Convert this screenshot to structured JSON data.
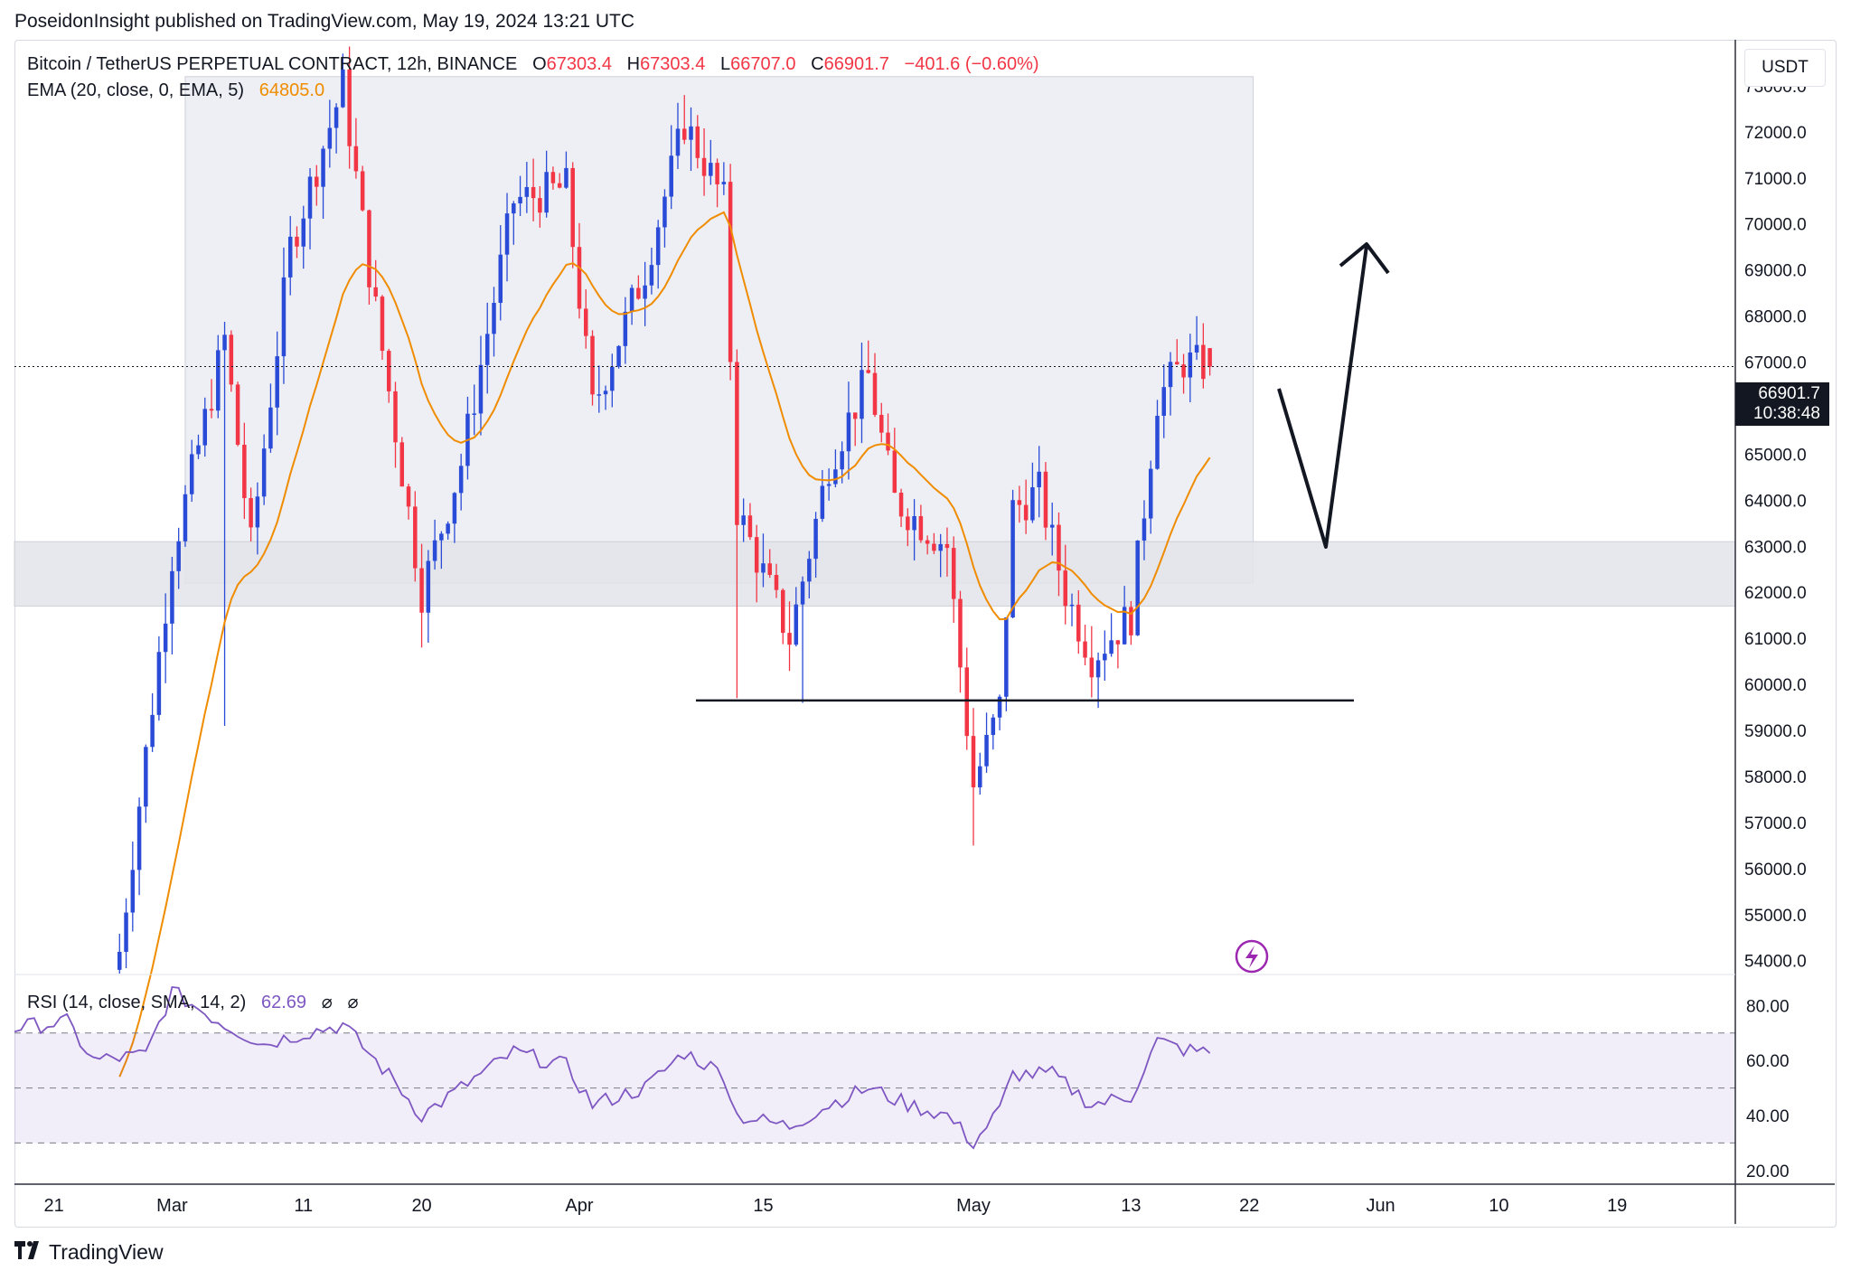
{
  "publisher_text": "PoseidonInsight published on TradingView.com, May 19, 2024 13:21 UTC",
  "legend": {
    "symbol": "Bitcoin / TetherUS PERPETUAL CONTRACT, 12h, BINANCE",
    "open_label": "O",
    "open": "67303.4",
    "high_label": "H",
    "high": "67303.4",
    "low_label": "L",
    "low": "66707.0",
    "close_label": "C",
    "close": "66901.7",
    "change": "−401.6 (−0.60%)",
    "ema_label": "EMA (20, close, 0, EMA, 5)",
    "ema_value": "64805.0"
  },
  "rsi_legend": {
    "label": "RSI (14, close, SMA, 14, 2)",
    "value": "62.69",
    "icons": [
      "⌀",
      "⌀"
    ]
  },
  "currency": "USDT",
  "last_price": {
    "price": "66901.7",
    "countdown": "10:38:48"
  },
  "footer_brand": "TradingView",
  "colors": {
    "up": "#2a4bd7",
    "down": "#f23645",
    "ema": "#f08c00",
    "rsi": "#7e57c2",
    "zone": "#eceef3"
  },
  "chart_data": [
    {
      "type": "candlestick",
      "ylim": [
        53700,
        74000
      ],
      "y_ticks": [
        "73000.0",
        "72000.0",
        "71000.0",
        "70000.0",
        "69000.0",
        "68000.0",
        "67000.0",
        "66000.0",
        "65000.0",
        "64000.0",
        "63000.0",
        "62000.0",
        "61000.0",
        "60000.0",
        "59000.0",
        "58000.0",
        "57000.0",
        "56000.0",
        "55000.0",
        "54000.0"
      ],
      "x_ticks": [
        "21",
        "Mar",
        "11",
        "20",
        "Apr",
        "15",
        "May",
        "13",
        "22",
        "Jun",
        "10",
        "19"
      ],
      "last_close": 66901.7,
      "ema_last": 64805.0,
      "key_points": [
        {
          "date": "2024-02-26",
          "close": 54200
        },
        {
          "date": "2024-03-05",
          "close": 68000
        },
        {
          "date": "2024-03-14",
          "high": 73700
        },
        {
          "date": "2024-03-20",
          "low": 60800
        },
        {
          "date": "2024-04-09",
          "high": 72800
        },
        {
          "date": "2024-04-13",
          "low": 59700
        },
        {
          "date": "2024-04-18",
          "low": 59600
        },
        {
          "date": "2024-05-01",
          "low": 56500
        },
        {
          "date": "2024-05-15",
          "close": 66200
        },
        {
          "date": "2024-05-19",
          "close": 66901.7
        }
      ]
    },
    {
      "type": "line",
      "name": "RSI",
      "ylim": [
        15,
        90
      ],
      "y_ticks": [
        "80.00",
        "60.00",
        "40.00",
        "20.00"
      ],
      "bands": [
        70,
        50,
        30
      ],
      "last_value": 62.69,
      "key_points": [
        {
          "date": "2024-02-22",
          "value": 74
        },
        {
          "date": "2024-03-04",
          "value": 72
        },
        {
          "date": "2024-03-14",
          "value": 73
        },
        {
          "date": "2024-03-20",
          "value": 40
        },
        {
          "date": "2024-04-13",
          "value": 36
        },
        {
          "date": "2024-05-01",
          "value": 30
        },
        {
          "date": "2024-05-15",
          "value": 67
        },
        {
          "date": "2024-05-19",
          "value": 62.69
        }
      ]
    }
  ]
}
